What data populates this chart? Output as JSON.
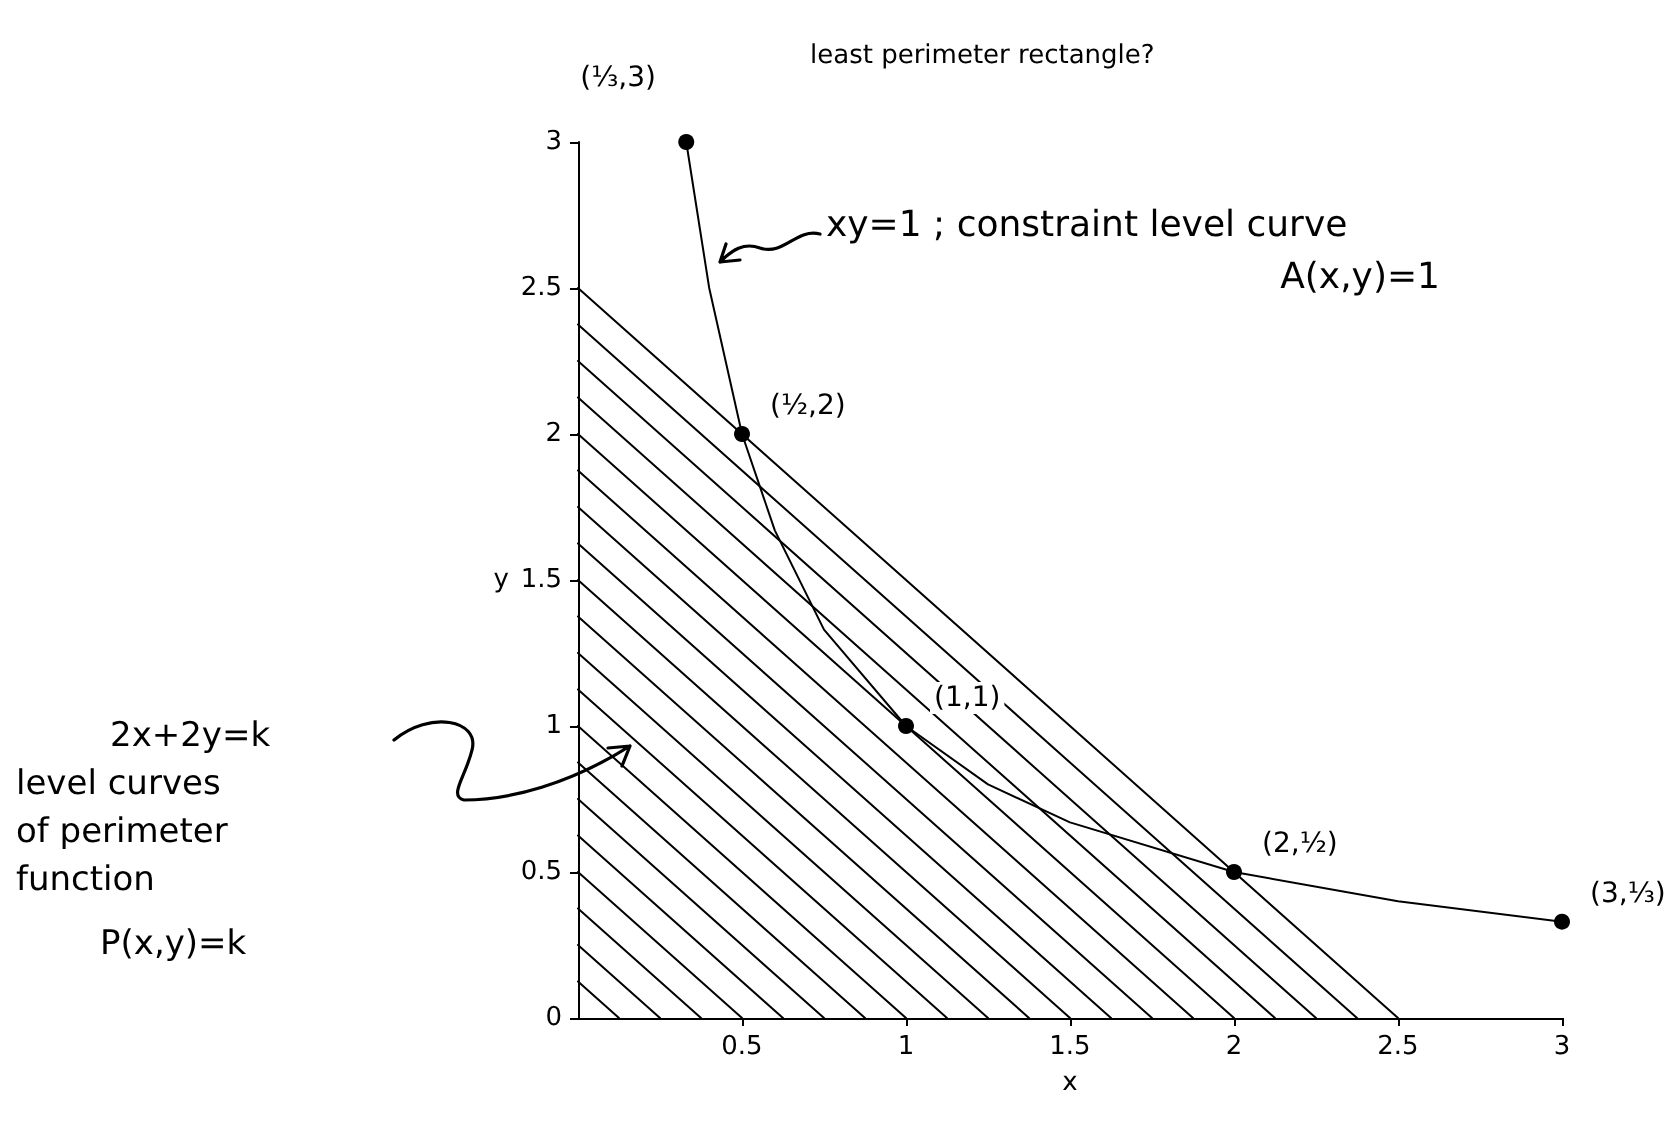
{
  "chart_data": {
    "type": "line",
    "xlabel": "x",
    "ylabel": "y",
    "xlim": [
      0,
      3
    ],
    "xticks": [
      0.5,
      1,
      1.5,
      2,
      2.5,
      3
    ],
    "ylim": [
      0,
      3
    ],
    "yticks": [
      0,
      0.5,
      1,
      1.5,
      2,
      2.5,
      3
    ],
    "grid": false,
    "series": [
      {
        "color": "#000000",
        "marker": "none",
        "x": [
          0.33,
          0.4,
          0.5,
          0.6,
          0.75,
          1,
          1.25,
          1.5,
          2,
          2.5,
          3
        ],
        "values": [
          3,
          2.5,
          2,
          1.67,
          1.33,
          1,
          0.8,
          0.67,
          0.5,
          0.4,
          0.33
        ]
      },
      {
        "type": "scatter",
        "color": "#000000",
        "marker": "circle",
        "x": [
          0.33,
          0.5,
          1,
          2,
          3
        ],
        "values": [
          3,
          2,
          1,
          0.5,
          0.33
        ]
      },
      {
        "type": "line",
        "color": "#000000",
        "marker": "none",
        "x": [
          0,
          0.125
        ],
        "values": [
          0.125,
          0
        ]
      },
      {
        "type": "line",
        "color": "#000000",
        "marker": "none",
        "x": [
          0,
          0.25
        ],
        "values": [
          0.25,
          0
        ]
      },
      {
        "type": "line",
        "color": "#000000",
        "marker": "none",
        "x": [
          0,
          0.375
        ],
        "values": [
          0.375,
          0
        ]
      },
      {
        "type": "line",
        "color": "#000000",
        "marker": "none",
        "x": [
          0,
          0.5
        ],
        "values": [
          0.5,
          0
        ]
      },
      {
        "type": "line",
        "color": "#000000",
        "marker": "none",
        "x": [
          0,
          0.625
        ],
        "values": [
          0.625,
          0
        ]
      },
      {
        "type": "line",
        "color": "#000000",
        "marker": "none",
        "x": [
          0,
          0.75
        ],
        "values": [
          0.75,
          0
        ]
      },
      {
        "type": "line",
        "color": "#000000",
        "marker": "none",
        "x": [
          0,
          0.875
        ],
        "values": [
          0.875,
          0
        ]
      },
      {
        "type": "line",
        "color": "#000000",
        "marker": "none",
        "x": [
          0,
          1
        ],
        "values": [
          1,
          0
        ]
      },
      {
        "type": "line",
        "color": "#000000",
        "marker": "none",
        "x": [
          0,
          1.125
        ],
        "values": [
          1.125,
          0
        ]
      },
      {
        "type": "line",
        "color": "#000000",
        "marker": "none",
        "x": [
          0,
          1.25
        ],
        "values": [
          1.25,
          0
        ]
      },
      {
        "type": "line",
        "color": "#000000",
        "marker": "none",
        "x": [
          0,
          1.375
        ],
        "values": [
          1.375,
          0
        ]
      },
      {
        "type": "line",
        "color": "#000000",
        "marker": "none",
        "x": [
          0,
          1.5
        ],
        "values": [
          1.5,
          0
        ]
      },
      {
        "type": "line",
        "color": "#000000",
        "marker": "none",
        "x": [
          0,
          1.625
        ],
        "values": [
          1.625,
          0
        ]
      },
      {
        "type": "line",
        "color": "#000000",
        "marker": "none",
        "x": [
          0,
          1.75
        ],
        "values": [
          1.75,
          0
        ]
      },
      {
        "type": "line",
        "color": "#000000",
        "marker": "none",
        "x": [
          0,
          1.875
        ],
        "values": [
          1.875,
          0
        ]
      },
      {
        "type": "line",
        "color": "#000000",
        "marker": "none",
        "x": [
          0,
          2
        ],
        "values": [
          2,
          0
        ]
      },
      {
        "type": "line",
        "color": "#000000",
        "marker": "none",
        "x": [
          0,
          2.125
        ],
        "values": [
          2.125,
          0
        ]
      },
      {
        "type": "line",
        "color": "#000000",
        "marker": "none",
        "x": [
          0,
          2.25
        ],
        "values": [
          2.25,
          0
        ]
      },
      {
        "type": "line",
        "color": "#000000",
        "marker": "none",
        "x": [
          0,
          2.375
        ],
        "values": [
          2.375,
          0
        ]
      },
      {
        "type": "line",
        "color": "#000000",
        "marker": "none",
        "x": [
          0,
          2.5
        ],
        "values": [
          2.5,
          0
        ]
      }
    ],
    "annotations": [
      "least perimeter rectangle?",
      "xy=1 ; constraint level curve",
      "A(x,y)=1",
      "2x+2y=k",
      "level curves of perimeter function",
      "P(x,y)=k",
      {
        "text": "(⅓,3)",
        "x": 0.33,
        "y": 3
      },
      {
        "text": "(½,2)",
        "x": 0.5,
        "y": 2
      },
      {
        "text": "(1,1)",
        "x": 1,
        "y": 1
      },
      {
        "text": "(2,½)",
        "x": 2,
        "y": 0.5
      },
      {
        "text": "(3,⅓)",
        "x": 3,
        "y": 0.33
      }
    ]
  }
}
